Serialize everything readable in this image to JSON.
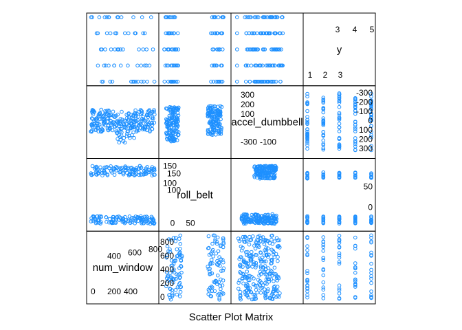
{
  "chart_data": {
    "type": "scatter",
    "title": "",
    "xlabel": "Scatter Plot Matrix",
    "ylabel": "",
    "point_color": "#1E90FF",
    "variables": [
      {
        "name": "num_window",
        "range": [
          0,
          900
        ],
        "ticks_low": [
          "0",
          "200",
          "400"
        ],
        "ticks_high": [
          "400",
          "600",
          "800"
        ]
      },
      {
        "name": "roll_belt",
        "range": [
          -10,
          170
        ],
        "ticks_low": [
          "0",
          "50"
        ],
        "ticks_high": [
          "100",
          "150"
        ]
      },
      {
        "name": "accel_dumbbell",
        "range": [
          -380,
          380
        ],
        "ticks_low": [
          "-300",
          "-100"
        ],
        "ticks_high": [
          "100",
          "300"
        ]
      },
      {
        "name": "y",
        "range": [
          0.8,
          5.2
        ],
        "ticks_low": [
          "1",
          "2",
          "3"
        ],
        "ticks_high": [
          "3",
          "4",
          "5"
        ]
      }
    ],
    "diagonal_labels": [
      "num_window",
      "roll_belt",
      "accel_dumbbell",
      "y"
    ],
    "panels_text": {
      "p00": {
        "y_ticks": [
          "400",
          "600",
          "800"
        ],
        "x_ticks": [
          "0",
          "200",
          "400"
        ]
      },
      "p11": {
        "y_ticks": [
          "100",
          "150"
        ],
        "x_ticks": [
          "0",
          "50"
        ]
      },
      "p22": {
        "y_ticks": [
          "100",
          "200",
          "300"
        ],
        "x_ticks": [
          "-300",
          "-100"
        ]
      },
      "p33": {
        "y_ticks": [
          "3",
          "4",
          "5"
        ],
        "x_ticks": [
          "1",
          "2",
          "3"
        ]
      }
    },
    "outer_ticks": {
      "top_y": [
        "4",
        "5"
      ],
      "top_x3": [
        "3",
        "4",
        "5"
      ],
      "right_y": [
        "1",
        "2",
        "3"
      ],
      "right_accel": [
        "-300",
        "-200",
        "-100",
        "0",
        "100",
        "200",
        "300"
      ],
      "right_roll": [
        "0",
        "50"
      ],
      "left_roll": [
        "150",
        "100"
      ],
      "left_accel_top": [
        "300",
        "200",
        "100"
      ],
      "left_accel_bottom": [
        "-300",
        "-100"
      ],
      "num_window_left": [
        "0",
        "200",
        "400",
        "600",
        "800"
      ]
    },
    "grid": false,
    "legend": "none"
  }
}
